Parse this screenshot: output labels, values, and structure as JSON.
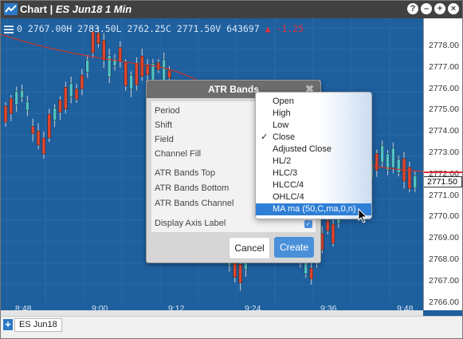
{
  "titlebar": {
    "app": "Chart",
    "symbol_title": "ES Jun18 1 Min",
    "buttons": [
      "?",
      "–",
      "+",
      "×"
    ]
  },
  "ohlc": {
    "text": "0 2767.00H 2783.50L 2762.25C 2771.50V 643697",
    "change": "▲ -1.25"
  },
  "yaxis": {
    "labels": [
      "2778.00",
      "2777.00",
      "2776.00",
      "2775.00",
      "2774.00",
      "2773.00",
      "2772.00",
      "2771.00",
      "2770.00",
      "2769.00",
      "2768.00",
      "2767.00",
      "2766.00"
    ],
    "current_price": "2771.50"
  },
  "xaxis": {
    "labels": [
      "8:48",
      "9:00",
      "9:12",
      "9:24",
      "9:36",
      "9:48"
    ]
  },
  "footer": {
    "add": "+",
    "symbol": "ES Jun18"
  },
  "dialog": {
    "title": "ATR Bands",
    "close": "✖",
    "fields": {
      "period": "Period",
      "shift": "Shift",
      "field": "Field",
      "channel_fill": "Channel Fill",
      "top": "ATR Bands Top",
      "bottom": "ATR Bands Bottom",
      "channel": "ATR Bands Channel",
      "axis_label": "Display Axis Label"
    },
    "cancel": "Cancel",
    "create": "Create"
  },
  "dropdown": {
    "options": [
      "Open",
      "High",
      "Low",
      "Close",
      "Adjusted Close",
      "HL/2",
      "HLC/3",
      "HLCC/4",
      "OHLC/4",
      "MA ma (50,C,ma,0,n)"
    ],
    "checked_index": 3,
    "selected_index": 9
  },
  "colors": {
    "chart_bg": "#1e5f9e",
    "up_candle": "#4fc3c9",
    "down_candle": "#e0452e",
    "ma_line": "#c0392b",
    "accent": "#2e7fd6"
  }
}
